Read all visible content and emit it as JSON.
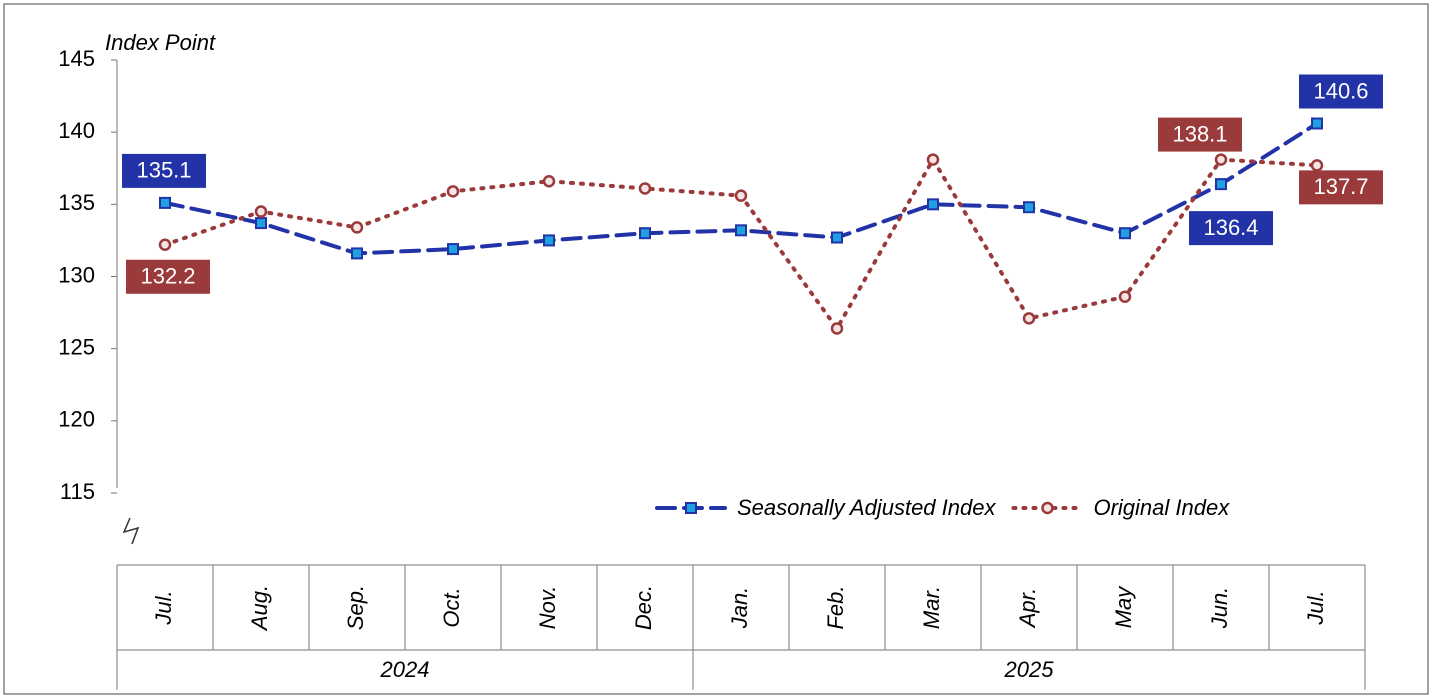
{
  "chart_data": {
    "type": "line",
    "y_axis_label": "Index Point",
    "categories": [
      "Jul.",
      "Aug.",
      "Sep.",
      "Oct.",
      "Nov.",
      "Dec.",
      "Jan.",
      "Feb.",
      "Mar.",
      "Apr.",
      "May",
      "Jun.",
      "Jul."
    ],
    "year_groups": [
      {
        "label": "2024",
        "count": 6
      },
      {
        "label": "2025",
        "count": 7
      }
    ],
    "series": [
      {
        "name": "Seasonally Adjusted Index",
        "color": "#2233a8",
        "marker_fill": "#1fa0e0",
        "style": "dashed",
        "marker": "square",
        "values": [
          135.1,
          133.7,
          131.6,
          131.9,
          132.5,
          133.0,
          133.2,
          132.7,
          135.0,
          134.8,
          133.0,
          136.4,
          140.6
        ],
        "value_labels": [
          "135.1",
          null,
          null,
          null,
          null,
          null,
          null,
          null,
          null,
          null,
          null,
          "136.4",
          "140.6"
        ]
      },
      {
        "name": "Original Index",
        "color": "#9b3a3a",
        "marker_fill": "#f4e4e4",
        "style": "dotted",
        "marker": "circle",
        "values": [
          132.2,
          134.5,
          133.4,
          135.9,
          136.6,
          136.1,
          135.6,
          126.4,
          138.1,
          127.1,
          128.6,
          138.1,
          137.7
        ],
        "value_labels": [
          "132.2",
          null,
          null,
          null,
          null,
          null,
          null,
          null,
          null,
          null,
          null,
          "138.1",
          "137.7"
        ]
      }
    ],
    "ylim": [
      115,
      145
    ],
    "yticks": [
      115,
      120,
      125,
      130,
      135,
      140,
      145
    ],
    "legend": "lower right"
  }
}
